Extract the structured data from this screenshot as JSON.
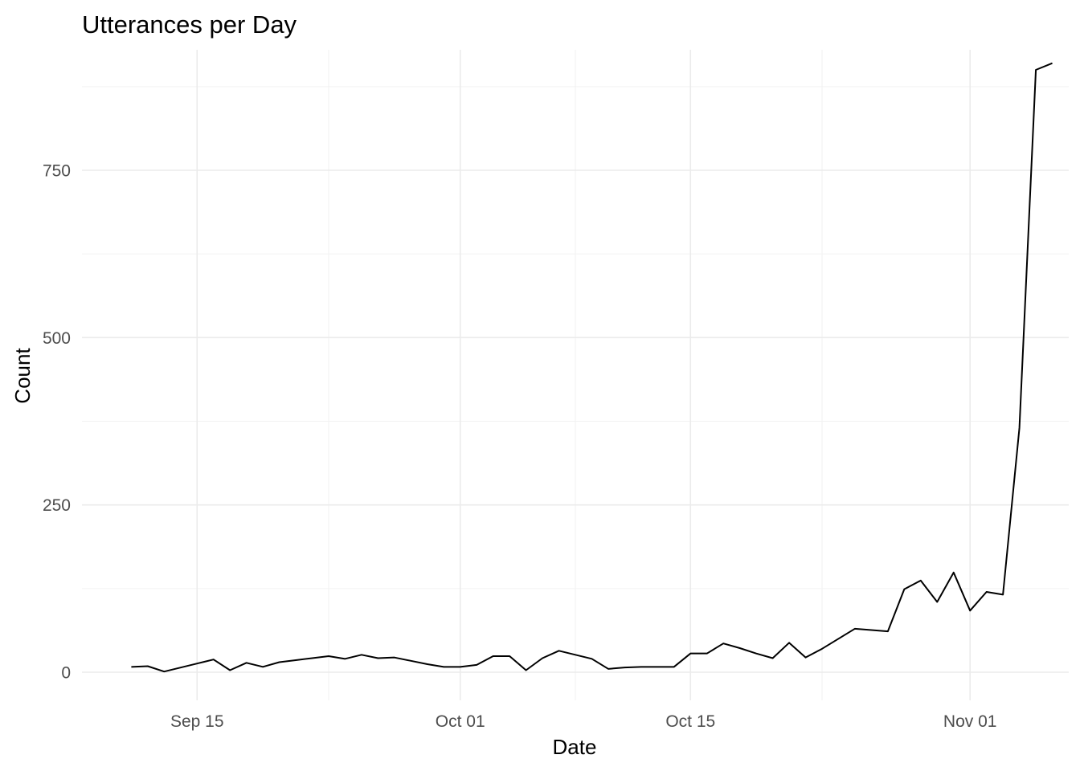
{
  "chart_data": {
    "type": "line",
    "title": "Utterances per Day",
    "xlabel": "Date",
    "ylabel": "Count",
    "x_ticks": [
      {
        "date": "2018-09-15",
        "label": "Sep 15"
      },
      {
        "date": "2018-10-01",
        "label": "Oct 01"
      },
      {
        "date": "2018-10-15",
        "label": "Oct 15"
      },
      {
        "date": "2018-11-01",
        "label": "Nov 01"
      }
    ],
    "x_minor_ticks": [
      "2018-09-23",
      "2018-10-08",
      "2018-10-23"
    ],
    "y_ticks": [
      0,
      250,
      500,
      750
    ],
    "y_minor_ticks": [
      125,
      375,
      625,
      875
    ],
    "xlim": [
      "2018-09-08",
      "2018-11-07"
    ],
    "ylim": [
      -42,
      930
    ],
    "grid": true,
    "legend": "none",
    "line_color": "#000000",
    "series": [
      {
        "x": [
          "2018-09-11",
          "2018-09-12",
          "2018-09-13",
          "2018-09-14",
          "2018-09-15",
          "2018-09-16",
          "2018-09-17",
          "2018-09-18",
          "2018-09-19",
          "2018-09-20",
          "2018-09-21",
          "2018-09-22",
          "2018-09-23",
          "2018-09-24",
          "2018-09-25",
          "2018-09-26",
          "2018-09-27",
          "2018-09-28",
          "2018-09-29",
          "2018-09-30",
          "2018-10-01",
          "2018-10-02",
          "2018-10-03",
          "2018-10-04",
          "2018-10-05",
          "2018-10-06",
          "2018-10-07",
          "2018-10-08",
          "2018-10-09",
          "2018-10-10",
          "2018-10-11",
          "2018-10-12",
          "2018-10-13",
          "2018-10-14",
          "2018-10-15",
          "2018-10-16",
          "2018-10-17",
          "2018-10-18",
          "2018-10-19",
          "2018-10-20",
          "2018-10-21",
          "2018-10-22",
          "2018-10-23",
          "2018-10-24",
          "2018-10-25",
          "2018-10-26",
          "2018-10-27",
          "2018-10-28",
          "2018-10-29",
          "2018-10-30",
          "2018-10-31",
          "2018-11-01",
          "2018-11-02",
          "2018-11-03",
          "2018-11-04",
          "2018-11-05",
          "2018-11-06"
        ],
        "values": [
          8,
          9,
          1,
          7,
          13,
          19,
          3,
          14,
          8,
          15,
          18,
          21,
          24,
          20,
          26,
          21,
          22,
          17,
          12,
          8,
          8,
          11,
          24,
          24,
          3,
          21,
          32,
          26,
          20,
          5,
          7,
          8,
          8,
          8,
          28,
          28,
          43,
          36,
          28,
          21,
          44,
          22,
          35,
          50,
          65,
          63,
          61,
          124,
          137,
          105,
          149,
          92,
          120,
          116,
          365,
          900,
          910
        ]
      }
    ]
  }
}
